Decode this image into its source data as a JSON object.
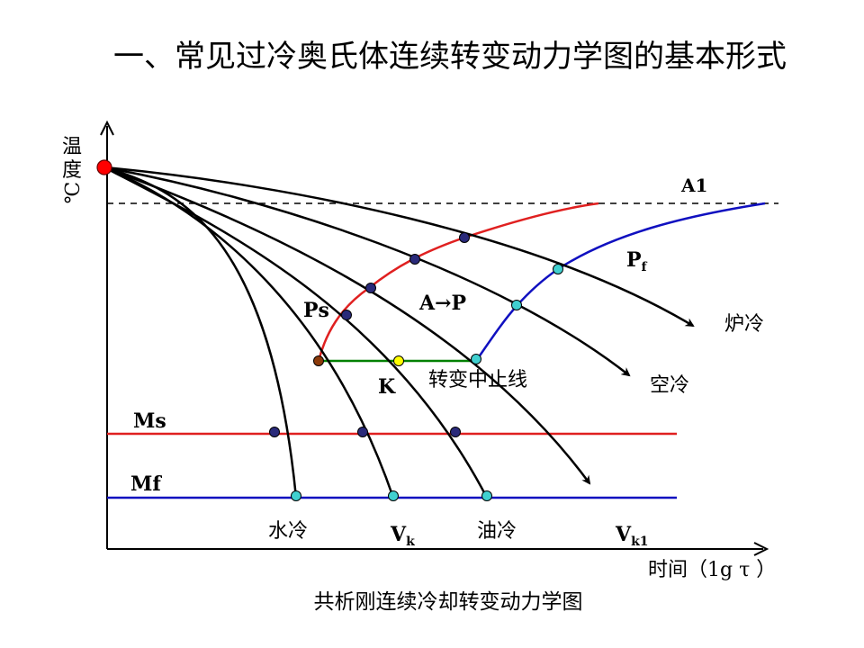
{
  "title": "一、常见过冷奥氏体连续转变动力学图的基本形式",
  "caption": "共析刚连续冷却转变动力学图",
  "axes": {
    "y_label": [
      "温",
      "度",
      "℃"
    ],
    "x_label": "时间（1g τ ）"
  },
  "lines": {
    "a1": "A1",
    "ms": "Ms",
    "mf": "Mf"
  },
  "labels": {
    "ps": "Ps",
    "pf_main": "P",
    "pf_sub": "f",
    "a_to_p": "A→P",
    "k": "K",
    "stop_line": "转变中止线",
    "furnace_cool": "炉冷",
    "air_cool": "空冷",
    "water_cool": "水冷",
    "oil_cool": "油冷",
    "vk_main": "V",
    "vk_sub": "k",
    "vk1_main": "V",
    "vk1_sub": "k1"
  },
  "colors": {
    "curve": "#000000",
    "pstart": "#e02020",
    "pfinish": "#1010c0",
    "stopline": "#008000",
    "ms_line": "#e02020",
    "mf_line": "#1010c0",
    "origin_dot": "#ff0000",
    "dark_dot": "#2a2a7a",
    "cyan_dot": "#40d0d0",
    "yellow_dot": "#ffff00",
    "brown_dot": "#8b3a0a"
  }
}
